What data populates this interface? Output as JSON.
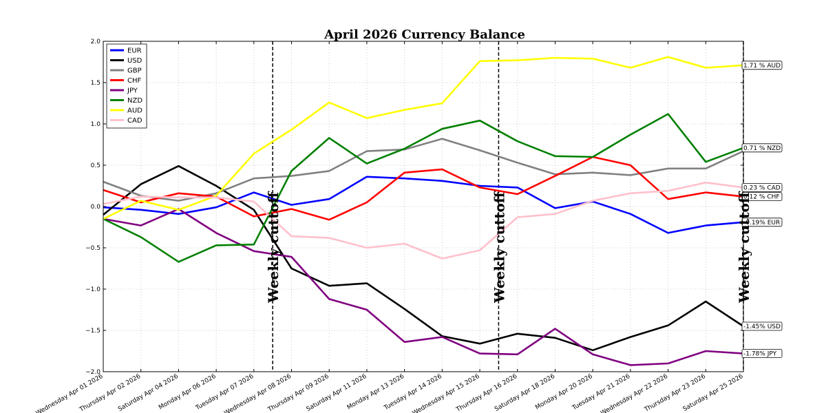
{
  "chart_data": {
    "type": "line",
    "title": "April 2026 Currency Balance",
    "xlabel": "",
    "ylabel": "",
    "ylim": [
      -2.0,
      2.0
    ],
    "yticks": [
      "2.0",
      "1.5",
      "1.0",
      "0.5",
      "0.0",
      "−0.5",
      "−1.0",
      "−1.5",
      "−2.0"
    ],
    "ytick_values": [
      2.0,
      1.5,
      1.0,
      0.5,
      0.0,
      -0.5,
      -1.0,
      -1.5,
      -2.0
    ],
    "grid": true,
    "legend_position": "top-left",
    "categories": [
      "Wednesday Apr 01 2026",
      "Thursday Apr 02 2026",
      "Saturday Apr 04 2026",
      "Monday Apr 06 2026",
      "Tuesday Apr 07 2026",
      "Wednesday Apr 08 2026",
      "Thursday Apr 09 2026",
      "Saturday Apr 11 2026",
      "Monday Apr 13 2026",
      "Tuesday Apr 14 2026",
      "Wednesday Apr 15 2026",
      "Thursday Apr 16 2026",
      "Saturday Apr 18 2026",
      "Monday Apr 20 2026",
      "Tuesday Apr 21 2026",
      "Wednesday Apr 22 2026",
      "Thursday Apr 23 2026",
      "Saturday Apr 25 2026"
    ],
    "series": [
      {
        "name": "EUR",
        "color": "#0000ff",
        "values": [
          -0.01,
          -0.04,
          -0.09,
          -0.01,
          0.17,
          0.02,
          0.09,
          0.36,
          0.34,
          0.31,
          0.25,
          0.23,
          -0.02,
          0.06,
          -0.09,
          -0.32,
          -0.23,
          -0.19
        ],
        "end_label": "-0.19% EUR"
      },
      {
        "name": "USD",
        "color": "#000000",
        "values": [
          -0.1,
          0.27,
          0.49,
          0.25,
          -0.04,
          -0.75,
          -0.96,
          -0.93,
          -1.24,
          -1.57,
          -1.66,
          -1.54,
          -1.59,
          -1.74,
          -1.58,
          -1.44,
          -1.15,
          -1.45
        ],
        "end_label": "-1.45% USD"
      },
      {
        "name": "GBP",
        "color": "#808080",
        "values": [
          0.3,
          0.13,
          0.07,
          0.16,
          0.34,
          0.37,
          0.43,
          0.67,
          0.69,
          0.82,
          0.68,
          0.53,
          0.39,
          0.41,
          0.38,
          0.46,
          0.46,
          0.67
        ],
        "end_label": ""
      },
      {
        "name": "CHF",
        "color": "#ff0000",
        "values": [
          0.2,
          0.05,
          0.16,
          0.12,
          -0.12,
          -0.03,
          -0.16,
          0.05,
          0.41,
          0.45,
          0.23,
          0.15,
          0.37,
          0.6,
          0.5,
          0.09,
          0.17,
          0.12
        ],
        "end_label": "0.12 % CHF"
      },
      {
        "name": "JPY",
        "color": "#800080",
        "values": [
          -0.15,
          -0.23,
          -0.03,
          -0.32,
          -0.54,
          -0.61,
          -1.12,
          -1.25,
          -1.64,
          -1.58,
          -1.78,
          -1.79,
          -1.48,
          -1.79,
          -1.92,
          -1.9,
          -1.75,
          -1.78
        ],
        "end_label": "-1.78% JPY"
      },
      {
        "name": "NZD",
        "color": "#008000",
        "values": [
          -0.15,
          -0.37,
          -0.67,
          -0.47,
          -0.46,
          0.43,
          0.83,
          0.52,
          0.7,
          0.94,
          1.04,
          0.79,
          0.61,
          0.6,
          0.87,
          1.12,
          0.54,
          0.71
        ],
        "end_label": "0.71 % NZD"
      },
      {
        "name": "AUD",
        "color": "#ffff00",
        "values": [
          -0.15,
          0.07,
          -0.04,
          0.13,
          0.64,
          0.93,
          1.26,
          1.07,
          1.17,
          1.25,
          1.76,
          1.77,
          1.8,
          1.79,
          1.68,
          1.81,
          1.68,
          1.71
        ],
        "end_label": "1.71 % AUD"
      },
      {
        "name": "CAD",
        "color": "#ffc0cb",
        "values": [
          0.03,
          0.12,
          0.11,
          0.11,
          0.06,
          -0.36,
          -0.38,
          -0.5,
          -0.45,
          -0.63,
          -0.53,
          -0.13,
          -0.09,
          0.07,
          0.16,
          0.19,
          0.29,
          0.23
        ],
        "end_label": "0.23 % CAD"
      }
    ],
    "annotations": [
      {
        "text": "Weekly cuttoff",
        "at_category": "Wednesday Apr 08 2026",
        "offset": -0.5
      },
      {
        "text": "Weekly cuttoff",
        "at_category": "Thursday Apr 16 2026",
        "offset": -0.5
      },
      {
        "text": "Weekly cuttoff",
        "at_category": "Saturday Apr 25 2026",
        "offset": 0
      }
    ]
  }
}
